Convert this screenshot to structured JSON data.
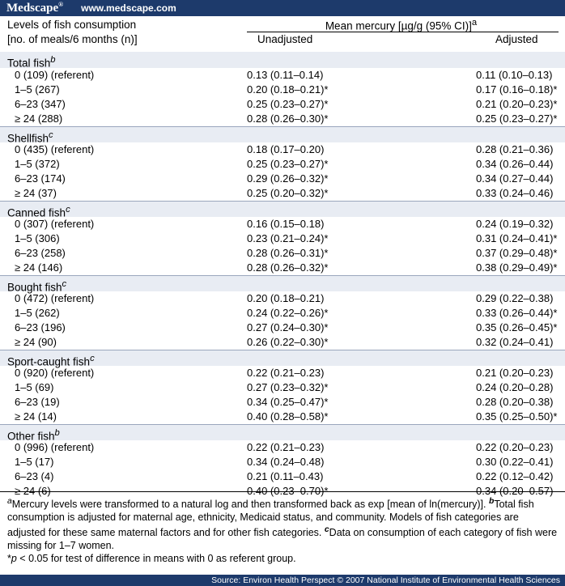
{
  "topbar": {
    "brand": "Medscape",
    "brand_mark": "®",
    "site": "www.medscape.com"
  },
  "header": {
    "levels_line1": "Levels of fish consumption",
    "levels_line2": "[no. of meals/6 months (n)]",
    "mean": "Mean mercury [µg/g (95% CI)]",
    "mean_sup": "a",
    "unadjusted": "Unadjusted",
    "adjusted": "Adjusted"
  },
  "sections": [
    {
      "title": "Total fish",
      "sup": "b",
      "rows": [
        {
          "level": "0 (109) (referent)",
          "unadj": "0.13 (0.11–0.14)",
          "adj": "0.11 (0.10–0.13)"
        },
        {
          "level": "1–5 (267)",
          "unadj": "0.20 (0.18–0.21)*",
          "adj": "0.17 (0.16–0.18)*"
        },
        {
          "level": "6–23 (347)",
          "unadj": "0.25 (0.23–0.27)*",
          "adj": "0.21 (0.20–0.23)*"
        },
        {
          "level": "≥ 24 (288)",
          "unadj": "0.28 (0.26–0.30)*",
          "adj": "0.25 (0.23–0.27)*"
        }
      ]
    },
    {
      "title": "Shellfish",
      "sup": "c",
      "rows": [
        {
          "level": "0 (435) (referent)",
          "unadj": "0.18 (0.17–0.20)",
          "adj": "0.28 (0.21–0.36)"
        },
        {
          "level": "1–5 (372)",
          "unadj": "0.25 (0.23–0.27)*",
          "adj": "0.34 (0.26–0.44)"
        },
        {
          "level": "6–23 (174)",
          "unadj": "0.29 (0.26–0.32)*",
          "adj": "0.34 (0.27–0.44)"
        },
        {
          "level": "≥ 24 (37)",
          "unadj": "0.25 (0.20–0.32)*",
          "adj": "0.33 (0.24–0.46)"
        }
      ]
    },
    {
      "title": "Canned fish",
      "sup": "c",
      "rows": [
        {
          "level": "0 (307) (referent)",
          "unadj": "0.16 (0.15–0.18)",
          "adj": "0.24 (0.19–0.32)"
        },
        {
          "level": "1–5 (306)",
          "unadj": "0.23 (0.21–0.24)*",
          "adj": "0.31 (0.24–0.41)*"
        },
        {
          "level": "6–23 (258)",
          "unadj": "0.28 (0.26–0.31)*",
          "adj": "0.37 (0.29–0.48)*"
        },
        {
          "level": "≥ 24 (146)",
          "unadj": "0.28 (0.26–0.32)*",
          "adj": "0.38 (0.29–0.49)*"
        }
      ]
    },
    {
      "title": "Bought fish",
      "sup": "c",
      "rows": [
        {
          "level": "0 (472) (referent)",
          "unadj": "0.20 (0.18–0.21)",
          "adj": "0.29 (0.22–0.38)"
        },
        {
          "level": "1–5 (262)",
          "unadj": "0.24 (0.22–0.26)*",
          "adj": "0.33 (0.26–0.44)*"
        },
        {
          "level": "6–23 (196)",
          "unadj": "0.27 (0.24–0.30)*",
          "adj": "0.35 (0.26–0.45)*"
        },
        {
          "level": "≥ 24 (90)",
          "unadj": "0.26 (0.22–0.30)*",
          "adj": "0.32 (0.24–0.41)"
        }
      ]
    },
    {
      "title": "Sport-caught fish",
      "sup": "c",
      "rows": [
        {
          "level": "0 (920) (referent)",
          "unadj": "0.22 (0.21–0.23)",
          "adj": "0.21 (0.20–0.23)"
        },
        {
          "level": "1–5 (69)",
          "unadj": "0.27 (0.23–0.32)*",
          "adj": "0.24 (0.20–0.28)"
        },
        {
          "level": "6–23 (19)",
          "unadj": "0.34 (0.25–0.47)*",
          "adj": "0.28 (0.20–0.38)"
        },
        {
          "level": "≥ 24 (14)",
          "unadj": "0.40 (0.28–0.58)*",
          "adj": "0.35 (0.25–0.50)*"
        }
      ]
    },
    {
      "title": "Other fish",
      "sup": "b",
      "rows": [
        {
          "level": "0 (996) (referent)",
          "unadj": "0.22 (0.21–0.23)",
          "adj": "0.22 (0.20–0.23)"
        },
        {
          "level": "1–5 (17)",
          "unadj": "0.34 (0.24–0.48)",
          "adj": "0.30 (0.22–0.41)"
        },
        {
          "level": "6–23 (4)",
          "unadj": "0.21 (0.11–0.43)",
          "adj": "0.22 (0.12–0.42)"
        },
        {
          "level": "≥ 24 (6)",
          "unadj": "0.40 (0.23–0.70)*",
          "adj": "0.34 (0.20–0.57)"
        }
      ]
    }
  ],
  "notes": {
    "a_mark": "a",
    "a_text": "Mercury levels were transformed to a natural log and then transformed back as exp [mean of ln(mercury)]. ",
    "b_mark": "b",
    "b_text": "Total fish consumption is adjusted for maternal age, ethnicity, Medicaid status, and community. Models of fish categories are adjusted for these same maternal factors and for other fish categories. ",
    "c_mark": "c",
    "c_text": "Data on consumption of each category of fish were missing for 1–7 women.",
    "p_star": "*",
    "p_letter": "p",
    "p_text": " < 0.05 for test of difference in means with 0 as referent group."
  },
  "source": "Source: Environ Health Perspect © 2007 National Institute of Environmental Health Sciences"
}
